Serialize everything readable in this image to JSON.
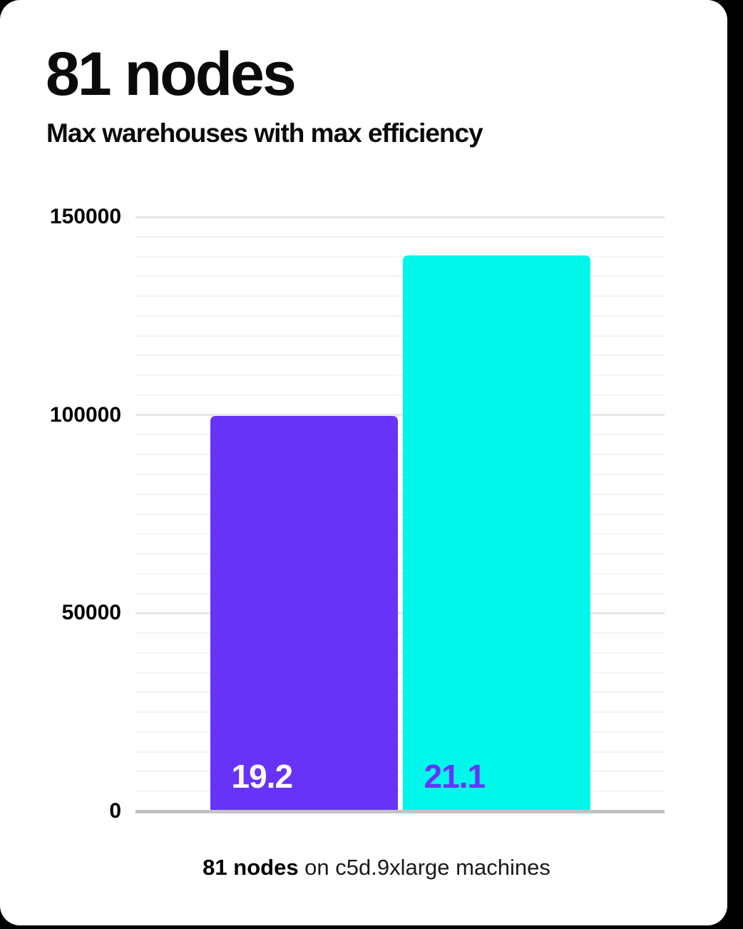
{
  "page": {
    "background": "#000000",
    "card_background": "#ffffff"
  },
  "header": {
    "title": "81 nodes",
    "subtitle": "Max warehouses with max efficiency"
  },
  "chart_data": {
    "type": "bar",
    "title": "81 nodes",
    "subtitle": "Max warehouses with max efficiency",
    "ylabel": "",
    "xlabel": "",
    "ylim": [
      0,
      150000
    ],
    "ytick_labels": [
      "0",
      "50000",
      "100000",
      "150000"
    ],
    "ytick_values": [
      0,
      50000,
      100000,
      150000
    ],
    "minor_gridline_step": 5000,
    "grid": true,
    "legend": false,
    "bars": [
      {
        "name": "19.2-warehouses-bar",
        "label": "19.2",
        "value": 99700,
        "color": "#6733f9",
        "label_color": "#ffffff"
      },
      {
        "name": "21.1-warehouses-bar",
        "label": "21.1",
        "value": 140200,
        "color": "#00f8ec",
        "label_color": "#6733f9"
      }
    ],
    "colors": {
      "axis_line": "#c3c3c3",
      "major_gridline": "#e7e7e7",
      "minor_gridline": "#f3f3f3",
      "tick_label": "#000000"
    }
  },
  "caption": {
    "bold": "81 nodes",
    "rest": " on c5d.9xlarge machines"
  }
}
